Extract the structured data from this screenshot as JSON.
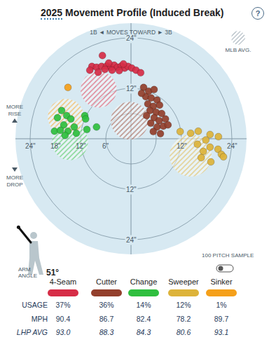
{
  "chart_data": {
    "type": "scatter",
    "title": "2025 Movement Profile (Induced Break)",
    "help_icon": "?",
    "direction_label": "1B ◄ MOVES TOWARD ► 3B",
    "rise_label": "MORE RISE",
    "drop_label": "MORE DROP",
    "mlb_avg_label": "MLB AVG.",
    "sample_label": "100 PITCH SAMPLE",
    "arm_angle": {
      "label": "ARM ANGLE",
      "value": 51,
      "value_label": "51°"
    },
    "xlim": [
      -27.5,
      27.5
    ],
    "ylim": [
      -27.5,
      27.5
    ],
    "tick_labels": false,
    "grid": false,
    "rings": [
      6,
      12,
      24
    ],
    "ring_labels_x": [
      {
        "value": -24,
        "label": "24\""
      },
      {
        "value": -18,
        "label": "18\""
      },
      {
        "value": -12,
        "label": "12\""
      },
      {
        "value": -6,
        "label": "6\""
      },
      {
        "value": 12,
        "label": "12\""
      },
      {
        "value": 24,
        "label": "24\""
      }
    ],
    "ring_labels_y": [
      {
        "value": 24,
        "label": "24\""
      },
      {
        "value": 12,
        "label": "12\""
      },
      {
        "value": -12,
        "label": "12\""
      },
      {
        "value": -24,
        "label": "24\""
      }
    ],
    "series": [
      {
        "name": "4-Seam",
        "color": "#d62d47",
        "marker": "circle",
        "x": [
          -6.8,
          -9.3,
          -9.8,
          -8.2,
          -7.0,
          -5.8,
          -4.8,
          -4.0,
          -3.2,
          -2.3,
          -1.5,
          -0.7,
          0.2,
          1.2,
          2.3,
          -6.2,
          -4.5,
          -2.8,
          -7.8,
          -1.8,
          -5.3
        ],
        "y": [
          19.8,
          17.2,
          16.3,
          17.0,
          17.2,
          17.3,
          17.0,
          17.5,
          17.0,
          17.3,
          16.8,
          17.2,
          16.8,
          16.3,
          15.7,
          16.5,
          16.3,
          16.2,
          15.8,
          17.8,
          18.0
        ],
        "mlb_avg": {
          "x": -7.7,
          "y": 11.7,
          "r": 4.3
        }
      },
      {
        "name": "Cutter",
        "color": "#933f2c",
        "marker": "circle",
        "x": [
          3.0,
          4.2,
          5.5,
          3.5,
          4.8,
          6.2,
          4.0,
          5.3,
          6.8,
          4.5,
          6.0,
          7.3,
          3.7,
          5.5,
          6.7,
          8.2,
          4.7,
          6.2,
          7.7,
          5.3,
          7.0,
          8.8,
          2.5
        ],
        "y": [
          12.2,
          11.3,
          11.7,
          10.0,
          9.7,
          9.2,
          8.3,
          7.7,
          8.0,
          6.7,
          6.3,
          6.0,
          5.5,
          5.0,
          4.3,
          4.7,
          3.7,
          2.8,
          3.0,
          1.7,
          1.2,
          3.3,
          10.8
        ],
        "mlb_avg": {
          "x": -0.3,
          "y": 4.3,
          "r": 4.5
        }
      },
      {
        "name": "Change",
        "color": "#2fbf3f",
        "marker": "circle",
        "x": [
          -16.5,
          -15.3,
          -17.5,
          -14.3,
          -16.0,
          -18.2,
          -16.8,
          -15.0,
          -13.5,
          -11.0,
          -10.8,
          -13.0,
          -10.5,
          -8.2,
          -15.7
        ],
        "y": [
          6.7,
          5.5,
          5.0,
          4.7,
          3.3,
          1.8,
          2.0,
          1.8,
          2.8,
          5.5,
          4.7,
          1.3,
          2.2,
          2.8,
          0.8
        ],
        "mlb_avg": {
          "x": -14.5,
          "y": -0.8,
          "r": 4.3
        }
      },
      {
        "name": "Sweeper",
        "color": "#ddb33a",
        "marker": "circle",
        "x": [
          11.7,
          14.2,
          16.0,
          18.8,
          20.8,
          17.8,
          15.8,
          18.8,
          17.2,
          20.7,
          21.5,
          16.7,
          19.0,
          22.0
        ],
        "y": [
          1.7,
          1.3,
          1.8,
          1.0,
          0.5,
          -0.3,
          -1.3,
          -2.0,
          -3.0,
          -2.5,
          -3.7,
          -4.5,
          -5.5,
          -4.3
        ],
        "mlb_avg": {
          "x": 14.2,
          "y": -4.0,
          "r": 5.0
        }
      },
      {
        "name": "Sinker",
        "color": "#f5a01a",
        "marker": "circle",
        "x": [
          -15.0
        ],
        "y": [
          12.2
        ],
        "mlb_avg": {
          "x": -15.5,
          "y": 5.2,
          "r": 4.3
        }
      }
    ],
    "table": {
      "row_labels": [
        "USAGE",
        "MPH",
        "LHP AVG"
      ],
      "usage": [
        "37%",
        "36%",
        "14%",
        "12%",
        "1%"
      ],
      "mph": [
        "90.4",
        "86.7",
        "82.4",
        "78.2",
        "89.7"
      ],
      "lhp_avg": [
        "93.0",
        "88.3",
        "84.3",
        "80.6",
        "93.1"
      ]
    }
  }
}
